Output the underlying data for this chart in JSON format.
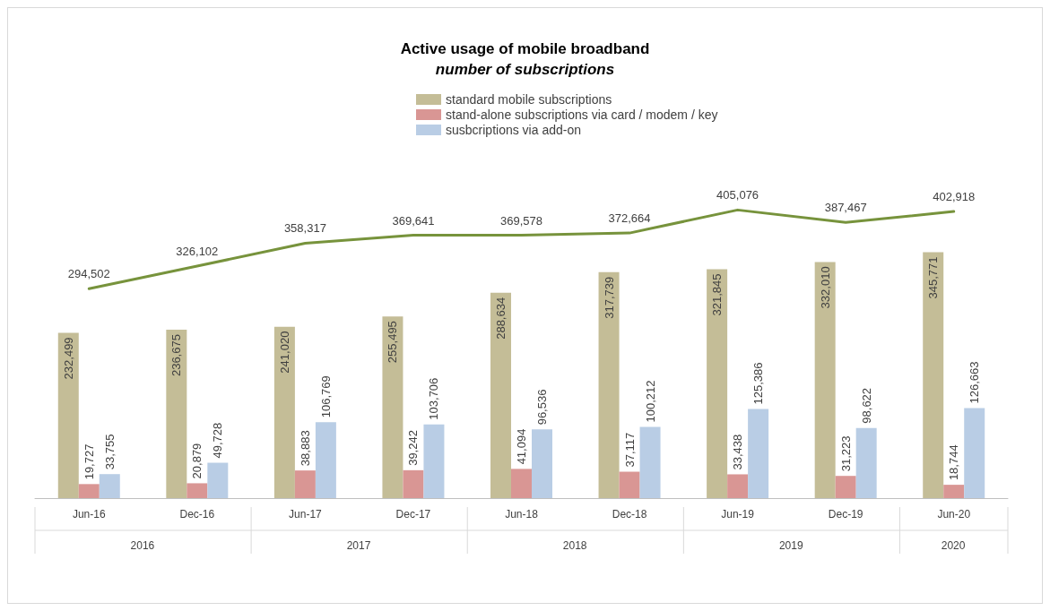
{
  "chart_data": {
    "type": "bar",
    "title": "Active usage of mobile broadband",
    "subtitle": "number of subscriptions",
    "categories": [
      "Jun-16",
      "Dec-16",
      "Jun-17",
      "Dec-17",
      "Jun-18",
      "Dec-18",
      "Jun-19",
      "Dec-19",
      "Jun-20"
    ],
    "series": [
      {
        "name": "standard mobile subscriptions",
        "color": "#c4bd97",
        "values": [
          232499,
          236675,
          241020,
          255495,
          288634,
          317739,
          321845,
          332010,
          345771
        ],
        "value_labels": [
          "232,499",
          "236,675",
          "241,020",
          "255,495",
          "288,634",
          "317,739",
          "321,845",
          "332,010",
          "345,771"
        ]
      },
      {
        "name": "stand-alone subscriptions via card / modem / key",
        "color": "#d99694",
        "values": [
          19727,
          20879,
          38883,
          39242,
          41094,
          37117,
          33438,
          31223,
          18744
        ],
        "value_labels": [
          "19,727",
          "20,879",
          "38,883",
          "39,242",
          "41,094",
          "37,117",
          "33,438",
          "31,223",
          "18,744"
        ]
      },
      {
        "name": "susbcriptions via add-on",
        "color": "#b9cde5",
        "values": [
          33755,
          49728,
          106769,
          103706,
          96536,
          100212,
          125386,
          98622,
          126663
        ],
        "value_labels": [
          "33,755",
          "49,728",
          "106,769",
          "103,706",
          "96,536",
          "100,212",
          "125,386",
          "98,622",
          "126,663"
        ]
      },
      {
        "type": "line",
        "color": "#77933c",
        "values": [
          294502,
          326102,
          358317,
          369641,
          369578,
          372664,
          405076,
          387467,
          402918
        ],
        "value_labels": [
          "294,502",
          "326,102",
          "358,317",
          "369,641",
          "369,578",
          "372,664",
          "405,076",
          "387,467",
          "402,918"
        ]
      }
    ],
    "annotations": [
      "2016",
      "2017",
      "2018",
      "2019",
      "2020"
    ],
    "legend": "top",
    "marker": "none",
    "line_style": "solid"
  }
}
